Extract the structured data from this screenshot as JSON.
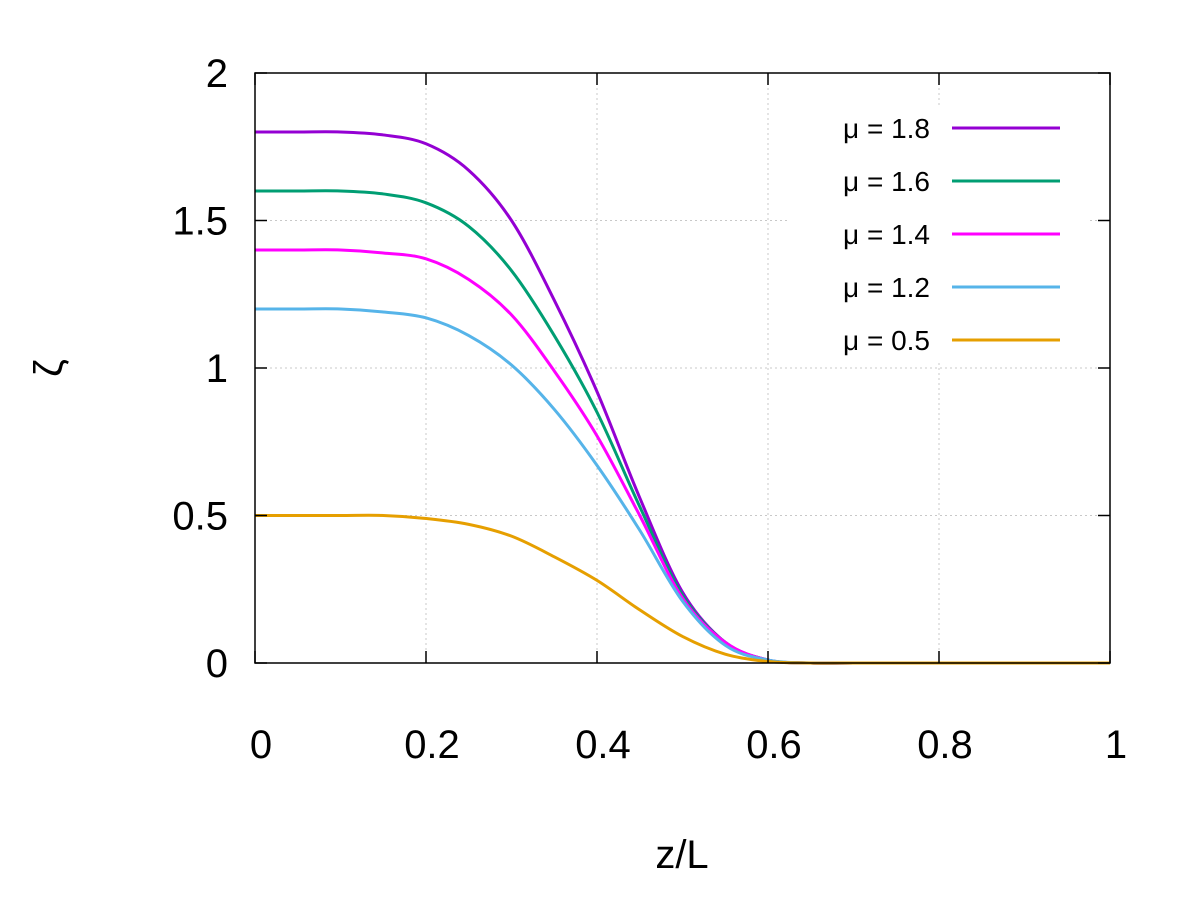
{
  "chart_data": {
    "type": "line",
    "xlabel": "z/L",
    "ylabel": "ζ",
    "xlim": [
      0,
      1
    ],
    "ylim": [
      0,
      2
    ],
    "xticks": [
      "0",
      "0.2",
      "0.4",
      "0.6",
      "0.8",
      "1"
    ],
    "yticks": [
      "0",
      "0.5",
      "1",
      "1.5",
      "2"
    ],
    "grid": true,
    "legend_position": "top-right",
    "x": [
      0,
      0.05,
      0.1,
      0.15,
      0.2,
      0.25,
      0.3,
      0.35,
      0.4,
      0.45,
      0.5,
      0.55,
      0.6,
      0.65,
      0.7,
      0.75,
      0.8,
      0.85,
      0.9,
      0.95,
      1.0
    ],
    "series": [
      {
        "name": "μ = 1.8",
        "color": "#9400d3",
        "values": [
          1.8,
          1.8,
          1.8,
          1.79,
          1.76,
          1.67,
          1.5,
          1.23,
          0.92,
          0.56,
          0.24,
          0.07,
          0.01,
          0.0,
          0.0,
          0.0,
          0.0,
          0.0,
          0.0,
          0.0,
          0.0
        ]
      },
      {
        "name": "μ = 1.6",
        "color": "#009e73",
        "values": [
          1.6,
          1.6,
          1.6,
          1.59,
          1.56,
          1.48,
          1.33,
          1.11,
          0.85,
          0.53,
          0.23,
          0.07,
          0.01,
          0.0,
          0.0,
          0.0,
          0.0,
          0.0,
          0.0,
          0.0,
          0.0
        ]
      },
      {
        "name": "μ = 1.4",
        "color": "#ff00ff",
        "values": [
          1.4,
          1.4,
          1.4,
          1.39,
          1.37,
          1.3,
          1.18,
          0.99,
          0.77,
          0.5,
          0.22,
          0.07,
          0.01,
          0.0,
          0.0,
          0.0,
          0.0,
          0.0,
          0.0,
          0.0,
          0.0
        ]
      },
      {
        "name": "μ = 1.2",
        "color": "#56b4e9",
        "values": [
          1.2,
          1.2,
          1.2,
          1.19,
          1.17,
          1.11,
          1.01,
          0.86,
          0.67,
          0.45,
          0.21,
          0.06,
          0.01,
          0.0,
          0.0,
          0.0,
          0.0,
          0.0,
          0.0,
          0.0,
          0.0
        ]
      },
      {
        "name": "μ = 0.5",
        "color": "#e69f00",
        "values": [
          0.5,
          0.5,
          0.5,
          0.5,
          0.49,
          0.47,
          0.43,
          0.36,
          0.28,
          0.18,
          0.09,
          0.03,
          0.005,
          0.0,
          0.0,
          0.0,
          0.0,
          0.0,
          0.0,
          0.0,
          0.0
        ]
      }
    ]
  }
}
